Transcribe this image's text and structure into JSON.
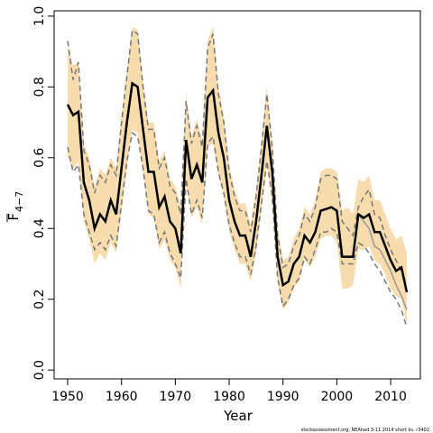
{
  "chart_data": {
    "type": "line",
    "xlabel": "Year",
    "ylabel": "F",
    "ylabel_subscript": "4−7",
    "footer": "stockassessment.org, NEAhad 3-11 2014 short ks. r3402",
    "x": [
      1950,
      1951,
      1952,
      1953,
      1954,
      1955,
      1956,
      1957,
      1958,
      1959,
      1960,
      1961,
      1962,
      1963,
      1964,
      1965,
      1966,
      1967,
      1968,
      1969,
      1970,
      1971,
      1972,
      1973,
      1974,
      1975,
      1976,
      1977,
      1978,
      1979,
      1980,
      1981,
      1982,
      1983,
      1984,
      1985,
      1986,
      1987,
      1988,
      1989,
      1990,
      1991,
      1992,
      1993,
      1994,
      1995,
      1996,
      1997,
      1998,
      1999,
      2000,
      2001,
      2002,
      2003,
      2004,
      2005,
      2006,
      2007,
      2008,
      2009,
      2010,
      2011,
      2012,
      2013
    ],
    "band": {
      "color": "#f7dcae",
      "upper": [
        0.92,
        0.86,
        0.87,
        0.64,
        0.6,
        0.52,
        0.57,
        0.55,
        0.6,
        0.57,
        0.72,
        0.85,
        0.97,
        0.96,
        0.82,
        0.7,
        0.7,
        0.59,
        0.62,
        0.54,
        0.52,
        0.46,
        0.78,
        0.66,
        0.71,
        0.65,
        0.93,
        0.97,
        0.8,
        0.72,
        0.58,
        0.51,
        0.47,
        0.47,
        0.41,
        0.51,
        0.65,
        0.8,
        0.65,
        0.4,
        0.31,
        0.32,
        0.37,
        0.4,
        0.46,
        0.44,
        0.48,
        0.56,
        0.57,
        0.57,
        0.56,
        0.45,
        0.46,
        0.44,
        0.54,
        0.53,
        0.55,
        0.48,
        0.48,
        0.44,
        0.4,
        0.37,
        0.38,
        0.33
      ],
      "lower": [
        0.6,
        0.57,
        0.59,
        0.42,
        0.37,
        0.3,
        0.33,
        0.31,
        0.36,
        0.33,
        0.45,
        0.57,
        0.68,
        0.67,
        0.56,
        0.44,
        0.43,
        0.34,
        0.37,
        0.31,
        0.29,
        0.23,
        0.53,
        0.43,
        0.46,
        0.41,
        0.63,
        0.64,
        0.55,
        0.49,
        0.39,
        0.34,
        0.3,
        0.3,
        0.25,
        0.33,
        0.45,
        0.58,
        0.47,
        0.25,
        0.17,
        0.19,
        0.23,
        0.25,
        0.31,
        0.29,
        0.32,
        0.37,
        0.38,
        0.38,
        0.36,
        0.23,
        0.23,
        0.24,
        0.34,
        0.34,
        0.35,
        0.31,
        0.3,
        0.27,
        0.23,
        0.21,
        0.2,
        0.13
      ]
    },
    "lines": [
      {
        "color": "#999999",
        "dash": false,
        "width": 1.5,
        "values": [
          0.75,
          0.72,
          0.73,
          0.53,
          0.48,
          0.4,
          0.44,
          0.42,
          0.48,
          0.44,
          0.57,
          0.7,
          0.81,
          0.8,
          0.68,
          0.56,
          0.56,
          0.46,
          0.49,
          0.42,
          0.4,
          0.33,
          0.65,
          0.54,
          0.58,
          0.53,
          0.77,
          0.79,
          0.67,
          0.6,
          0.48,
          0.42,
          0.38,
          0.38,
          0.32,
          0.42,
          0.55,
          0.69,
          0.56,
          0.32,
          0.24,
          0.25,
          0.3,
          0.32,
          0.38,
          0.36,
          0.39,
          0.45,
          0.455,
          0.46,
          0.45,
          0.32,
          0.32,
          0.32,
          0.44,
          0.42,
          0.4,
          0.35,
          0.34,
          0.31,
          0.28,
          0.24,
          0.21,
          0.17
        ]
      },
      {
        "color": "#777777",
        "dash": true,
        "width": 1.5,
        "values": [
          0.93,
          0.82,
          0.87,
          0.62,
          0.58,
          0.5,
          0.55,
          0.53,
          0.58,
          0.55,
          0.7,
          0.83,
          0.96,
          0.95,
          0.8,
          0.68,
          0.68,
          0.57,
          0.6,
          0.52,
          0.5,
          0.44,
          0.76,
          0.64,
          0.69,
          0.63,
          0.91,
          0.95,
          0.78,
          0.7,
          0.56,
          0.49,
          0.45,
          0.45,
          0.39,
          0.49,
          0.63,
          0.78,
          0.63,
          0.38,
          0.29,
          0.3,
          0.35,
          0.38,
          0.44,
          0.42,
          0.46,
          0.54,
          0.55,
          0.55,
          0.54,
          0.42,
          0.4,
          0.38,
          0.46,
          0.49,
          0.51,
          0.44,
          0.43,
          0.38,
          0.34,
          0.31,
          0.28,
          0.22
        ]
      },
      {
        "color": "#777777",
        "dash": true,
        "width": 1.5,
        "values": [
          0.63,
          0.56,
          0.58,
          0.44,
          0.39,
          0.34,
          0.36,
          0.34,
          0.38,
          0.35,
          0.47,
          0.59,
          0.67,
          0.66,
          0.57,
          0.45,
          0.44,
          0.36,
          0.39,
          0.33,
          0.3,
          0.26,
          0.54,
          0.44,
          0.48,
          0.43,
          0.64,
          0.66,
          0.56,
          0.5,
          0.41,
          0.36,
          0.32,
          0.32,
          0.27,
          0.35,
          0.47,
          0.59,
          0.49,
          0.26,
          0.18,
          0.2,
          0.24,
          0.26,
          0.32,
          0.3,
          0.34,
          0.39,
          0.39,
          0.4,
          0.39,
          0.3,
          0.3,
          0.3,
          0.36,
          0.35,
          0.33,
          0.3,
          0.28,
          0.25,
          0.22,
          0.2,
          0.17,
          0.12
        ]
      },
      {
        "color": "#000000",
        "dash": false,
        "width": 2.5,
        "values": [
          0.75,
          0.72,
          0.73,
          0.53,
          0.48,
          0.4,
          0.44,
          0.42,
          0.48,
          0.44,
          0.57,
          0.7,
          0.81,
          0.8,
          0.68,
          0.56,
          0.56,
          0.46,
          0.49,
          0.42,
          0.4,
          0.33,
          0.65,
          0.54,
          0.58,
          0.53,
          0.77,
          0.79,
          0.67,
          0.6,
          0.48,
          0.42,
          0.38,
          0.38,
          0.32,
          0.42,
          0.55,
          0.69,
          0.56,
          0.32,
          0.24,
          0.25,
          0.3,
          0.32,
          0.38,
          0.36,
          0.39,
          0.45,
          0.455,
          0.46,
          0.45,
          0.32,
          0.32,
          0.32,
          0.44,
          0.43,
          0.44,
          0.39,
          0.39,
          0.35,
          0.31,
          0.28,
          0.29,
          0.22
        ]
      }
    ],
    "xlim": [
      1947.48,
      2015.52
    ],
    "ylim": [
      -0.025,
      1.015
    ],
    "xticks": [
      1950,
      1960,
      1970,
      1980,
      1990,
      2000,
      2010
    ],
    "yticks": [
      {
        "value": 0,
        "label": "0.0"
      },
      0.2,
      0.4,
      0.6,
      0.8,
      {
        "value": 1,
        "label": "1.0"
      }
    ]
  }
}
